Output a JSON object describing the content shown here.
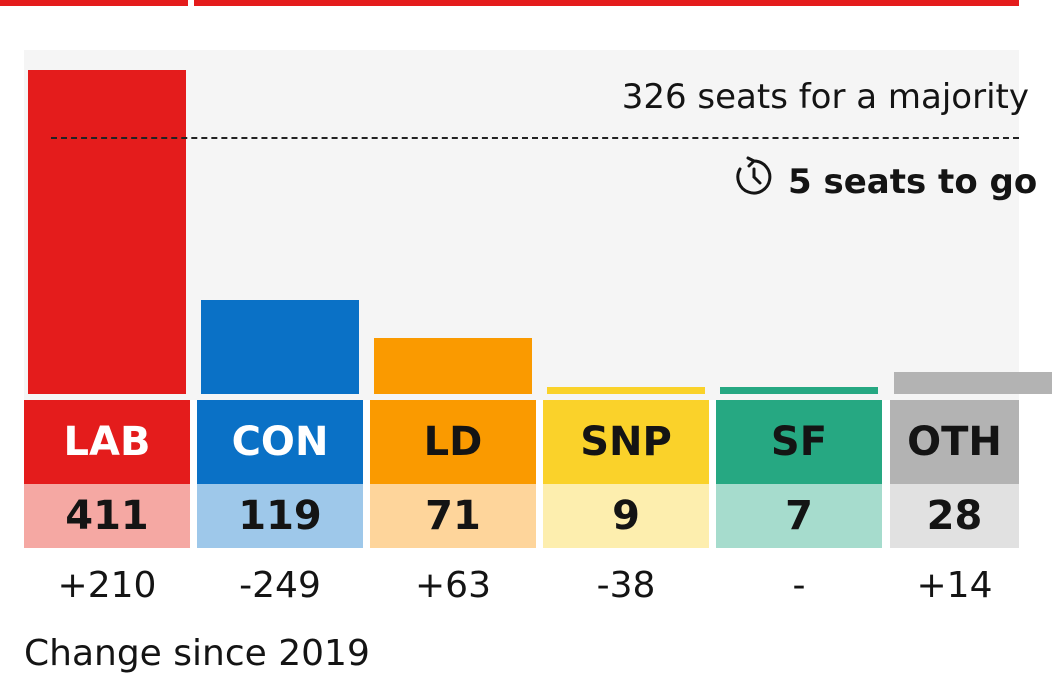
{
  "chart_data": {
    "type": "bar",
    "title": "",
    "categories": [
      "LAB",
      "CON",
      "LD",
      "SNP",
      "SF",
      "OTH"
    ],
    "values": [
      411,
      119,
      71,
      9,
      7,
      28
    ],
    "changes": [
      "+210",
      "-249",
      "+63",
      "-38",
      "-",
      "+14"
    ],
    "colors": [
      "#e41c1c",
      "#0a71c6",
      "#fa9a00",
      "#fad22a",
      "#26a882",
      "#b3b3b3"
    ],
    "light_colors": [
      "#f5a8a3",
      "#9ec8ea",
      "#fed59b",
      "#fdeeae",
      "#a6dccd",
      "#e1e1e1"
    ],
    "label_text_colors": [
      "#ffffff",
      "#ffffff",
      "#141414",
      "#141414",
      "#141414",
      "#141414"
    ],
    "ylim": [
      0,
      411
    ],
    "majority": 326,
    "majority_label": "326 seats for a majority",
    "seats_to_go_label": "5 seats to go",
    "change_caption": "Change since 2019"
  },
  "icons": {
    "clock": "clock-countdown-icon"
  }
}
